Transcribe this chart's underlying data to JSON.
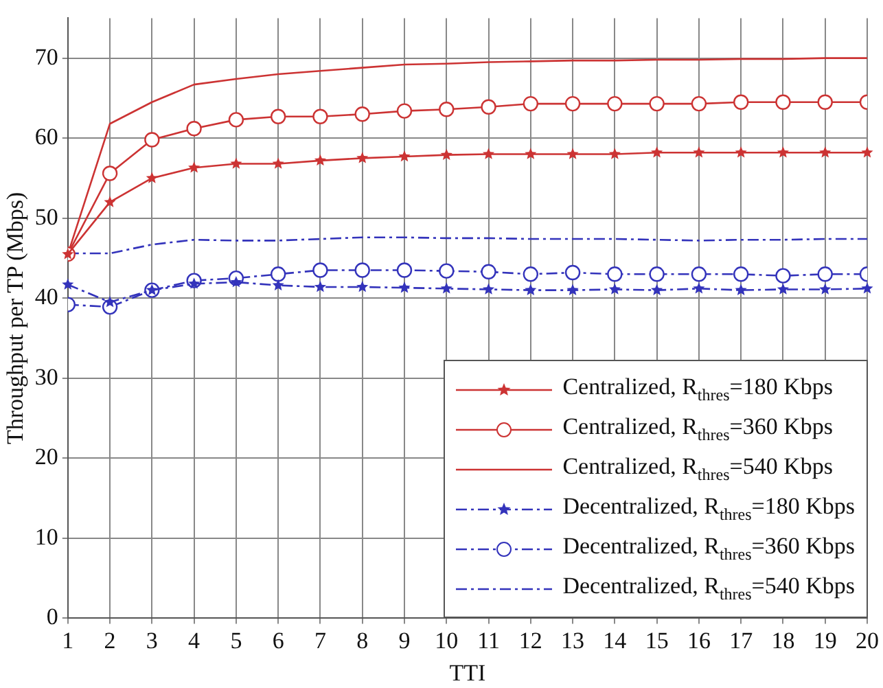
{
  "chart_data": {
    "type": "line",
    "xlabel": "TTI",
    "ylabel": "Throughput per TP (Mbps)",
    "x": [
      1,
      2,
      3,
      4,
      5,
      6,
      7,
      8,
      9,
      10,
      11,
      12,
      13,
      14,
      15,
      16,
      17,
      18,
      19,
      20
    ],
    "xlim": [
      1,
      20
    ],
    "xticks": [
      1,
      2,
      3,
      4,
      5,
      6,
      7,
      8,
      9,
      10,
      11,
      12,
      13,
      14,
      15,
      16,
      17,
      18,
      19,
      20
    ],
    "ylim": [
      0,
      75
    ],
    "yticks": [
      0,
      10,
      20,
      30,
      40,
      50,
      60,
      70
    ],
    "grid": true,
    "legend": "bottom right",
    "series": [
      {
        "name": "Centralized, R$_{thres}$=180 Kbps",
        "color": "#cc3333",
        "marker": "star",
        "line_style": "solid",
        "values": [
          45.5,
          52,
          55,
          56.3,
          56.8,
          56.8,
          57.2,
          57.5,
          57.7,
          57.9,
          58,
          58,
          58,
          58,
          58.2,
          58.2,
          58.2,
          58.2,
          58.2,
          58.2
        ]
      },
      {
        "name": "Centralized, R$_{thres}$=360 Kbps",
        "color": "#cc3333",
        "marker": "circle",
        "line_style": "solid",
        "values": [
          45.5,
          55.6,
          59.8,
          61.2,
          62.3,
          62.7,
          62.7,
          63,
          63.4,
          63.6,
          63.9,
          64.3,
          64.3,
          64.3,
          64.3,
          64.3,
          64.5,
          64.5,
          64.5,
          64.5
        ]
      },
      {
        "name": "Centralized, R$_{thres}$=540 Kbps",
        "color": "#cc3333",
        "marker": "none",
        "line_style": "solid",
        "values": [
          45.5,
          61.8,
          64.5,
          66.7,
          67.4,
          68,
          68.4,
          68.8,
          69.2,
          69.3,
          69.5,
          69.6,
          69.7,
          69.7,
          69.8,
          69.8,
          69.9,
          69.9,
          70,
          70
        ]
      },
      {
        "name": "Decentralized, R$_{thres}$=180 Kbps",
        "color": "#3333bb",
        "marker": "star",
        "line_style": "dashed",
        "values": [
          41.7,
          39.5,
          41,
          41.8,
          42,
          41.6,
          41.4,
          41.4,
          41.3,
          41.2,
          41.1,
          41,
          41,
          41.1,
          41,
          41.2,
          41,
          41.1,
          41.1,
          41.2
        ]
      },
      {
        "name": "Decentralized, R$_{thres}$=360 Kbps",
        "color": "#3333bb",
        "marker": "circle",
        "line_style": "dashed",
        "values": [
          39.2,
          38.9,
          41,
          42.2,
          42.5,
          43,
          43.5,
          43.5,
          43.5,
          43.4,
          43.3,
          43,
          43.2,
          43,
          43,
          43,
          43,
          42.8,
          43,
          43
        ]
      },
      {
        "name": "Decentralized, R$_{thres}$=540 Kbps",
        "color": "#3333bb",
        "marker": "none",
        "line_style": "dashed",
        "values": [
          45.6,
          45.6,
          46.7,
          47.3,
          47.2,
          47.2,
          47.4,
          47.6,
          47.6,
          47.5,
          47.5,
          47.4,
          47.4,
          47.4,
          47.3,
          47.2,
          47.3,
          47.3,
          47.4,
          47.4
        ]
      }
    ]
  }
}
